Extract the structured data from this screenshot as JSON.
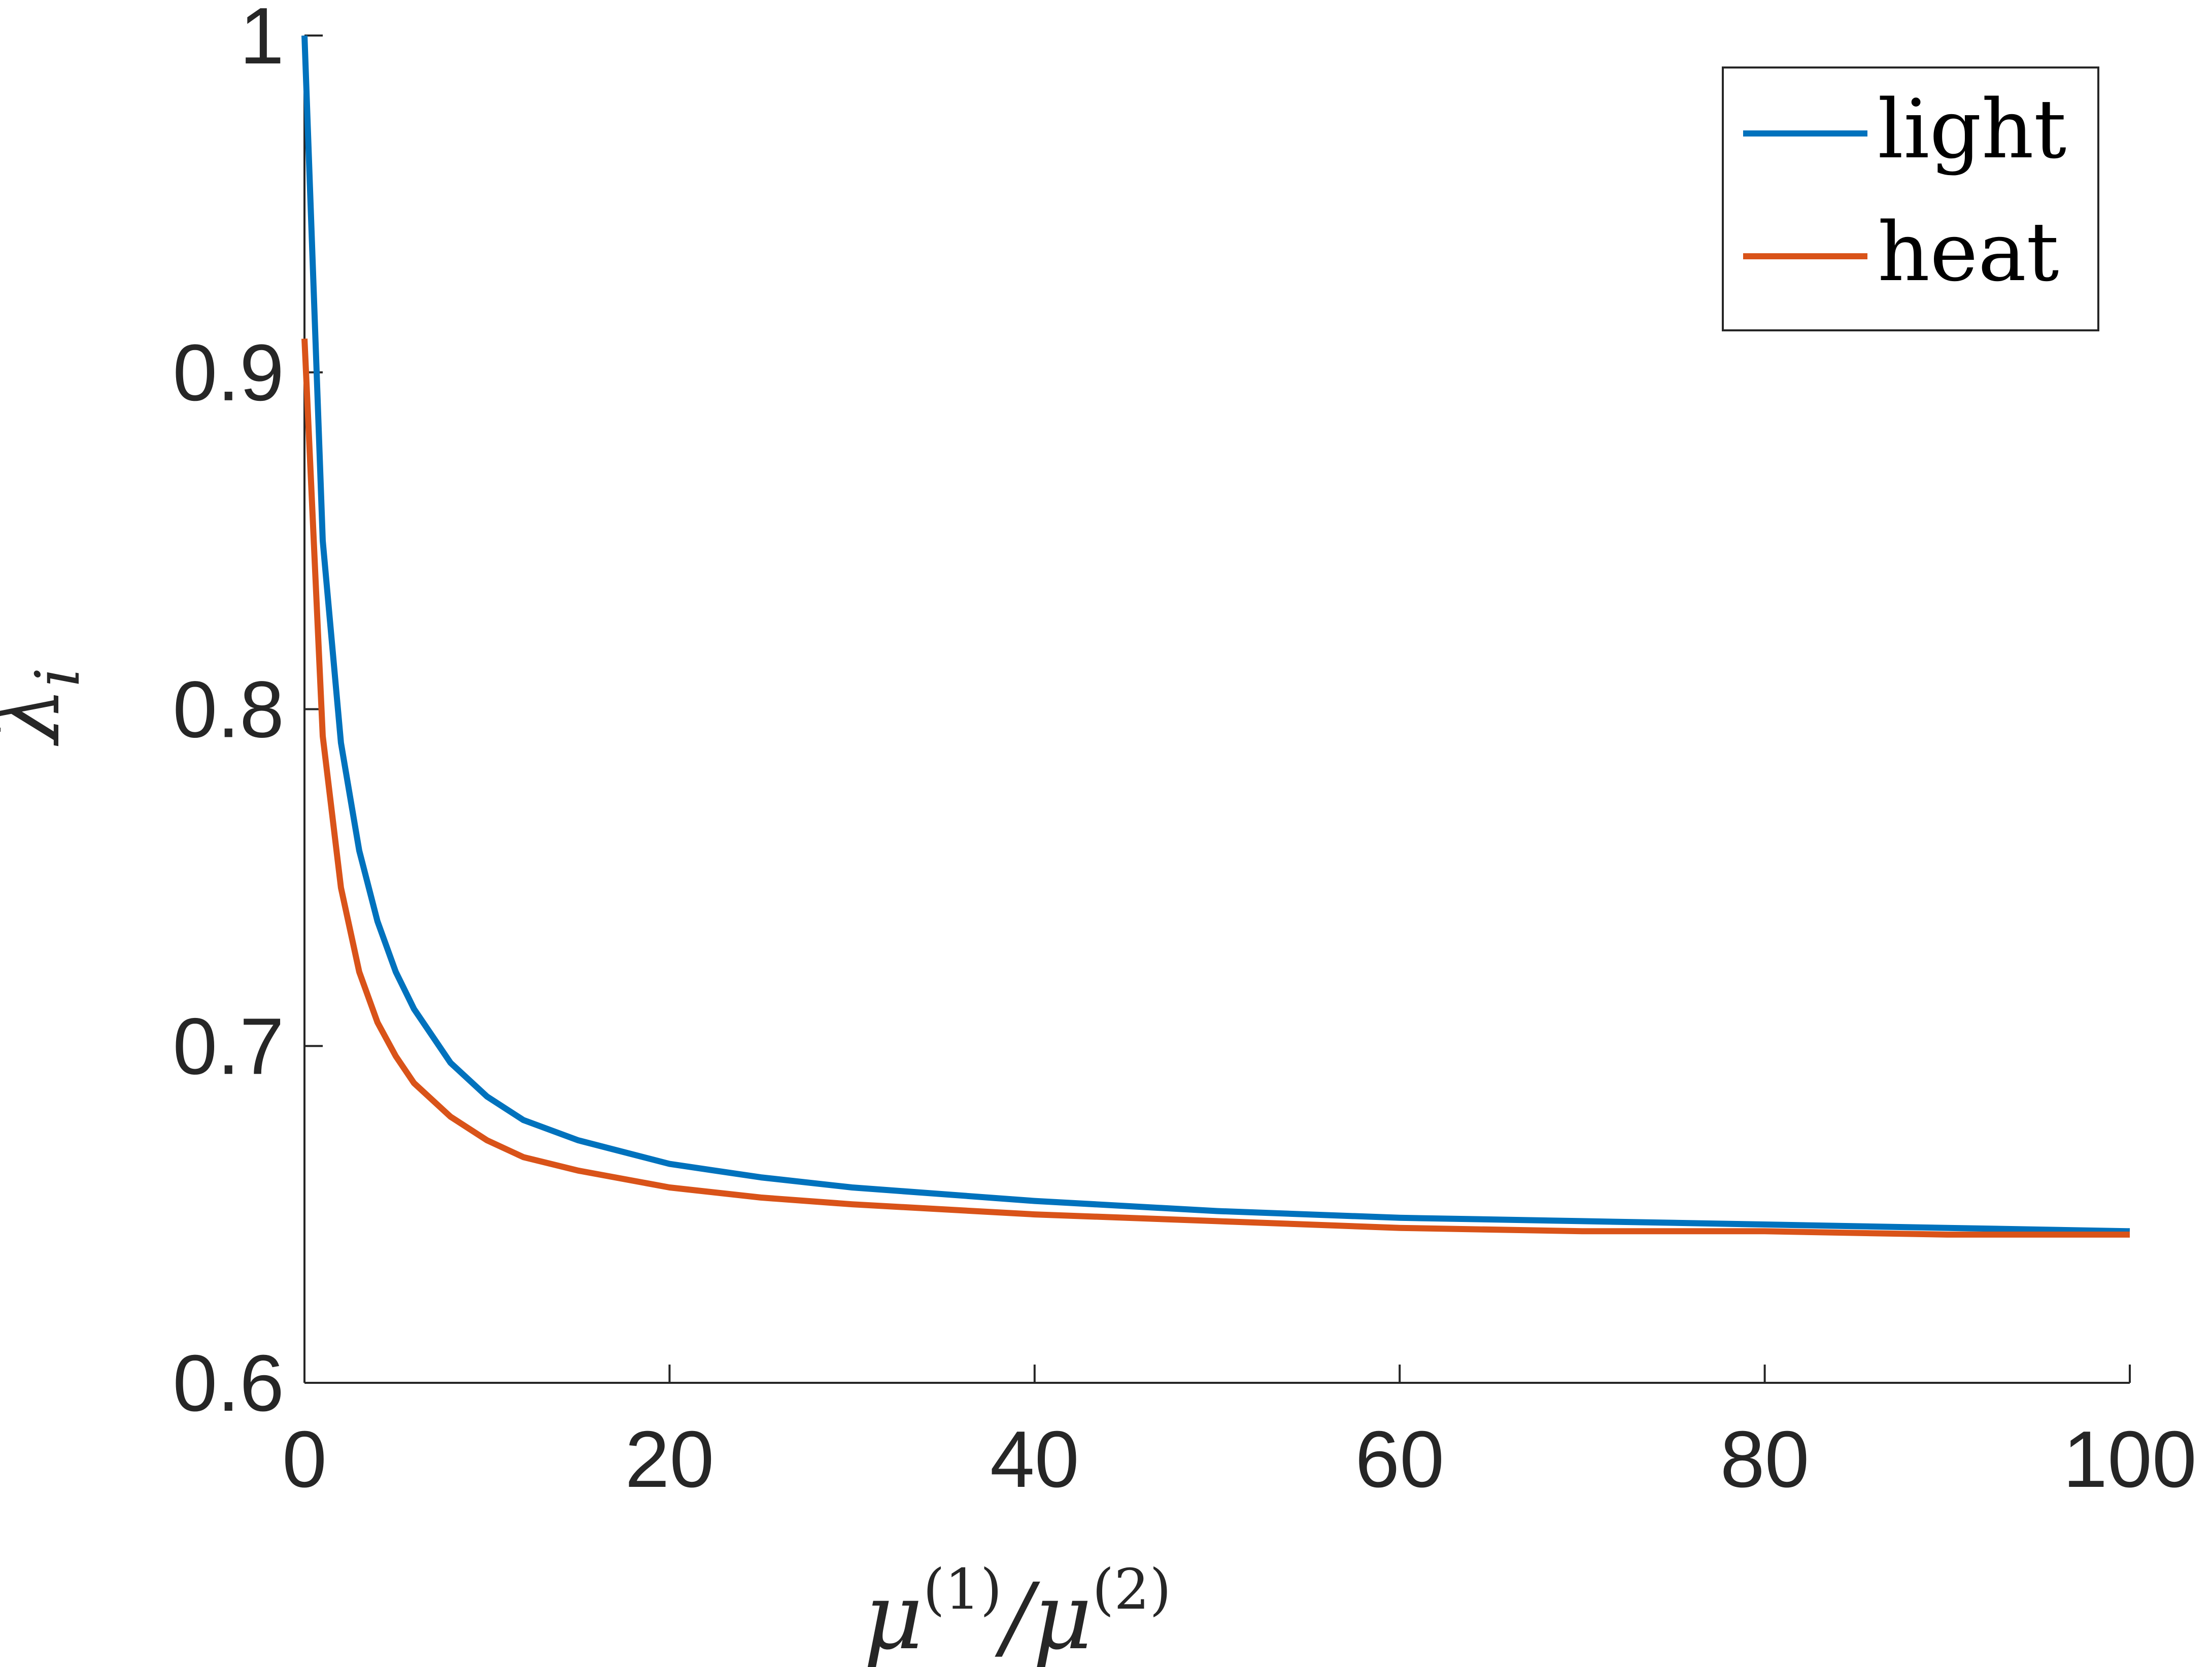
{
  "chart_data": {
    "type": "line",
    "xlabel": "μ(1)/μ(2)",
    "ylabel": "λi",
    "xlim": [
      0,
      100
    ],
    "ylim": [
      0.6,
      1.0
    ],
    "x_ticks": [
      0,
      20,
      40,
      60,
      80,
      100
    ],
    "y_ticks": [
      0.6,
      0.7,
      0.8,
      0.9,
      1.0
    ],
    "x_tick_labels": [
      "0",
      "20",
      "40",
      "60",
      "80",
      "100"
    ],
    "y_tick_labels": [
      "0.6",
      "0.7",
      "0.8",
      "0.9",
      "1"
    ],
    "grid": false,
    "legend_position": "top-right",
    "series": [
      {
        "name": "light",
        "color": "#0072BD",
        "x": [
          0,
          1,
          2,
          3,
          4,
          5,
          6,
          8,
          10,
          12,
          15,
          20,
          25,
          30,
          40,
          50,
          60,
          70,
          80,
          90,
          100
        ],
        "y": [
          1.0,
          0.85,
          0.79,
          0.758,
          0.737,
          0.722,
          0.711,
          0.695,
          0.685,
          0.678,
          0.672,
          0.665,
          0.661,
          0.658,
          0.654,
          0.651,
          0.649,
          0.648,
          0.647,
          0.646,
          0.645
        ]
      },
      {
        "name": "heat",
        "color": "#D95319",
        "x": [
          0,
          1,
          2,
          3,
          4,
          5,
          6,
          8,
          10,
          12,
          15,
          20,
          25,
          30,
          40,
          50,
          60,
          70,
          80,
          90,
          100
        ],
        "y": [
          0.91,
          0.792,
          0.747,
          0.722,
          0.707,
          0.697,
          0.689,
          0.679,
          0.672,
          0.667,
          0.663,
          0.658,
          0.655,
          0.653,
          0.65,
          0.648,
          0.646,
          0.645,
          0.645,
          0.644,
          0.644
        ]
      }
    ]
  }
}
